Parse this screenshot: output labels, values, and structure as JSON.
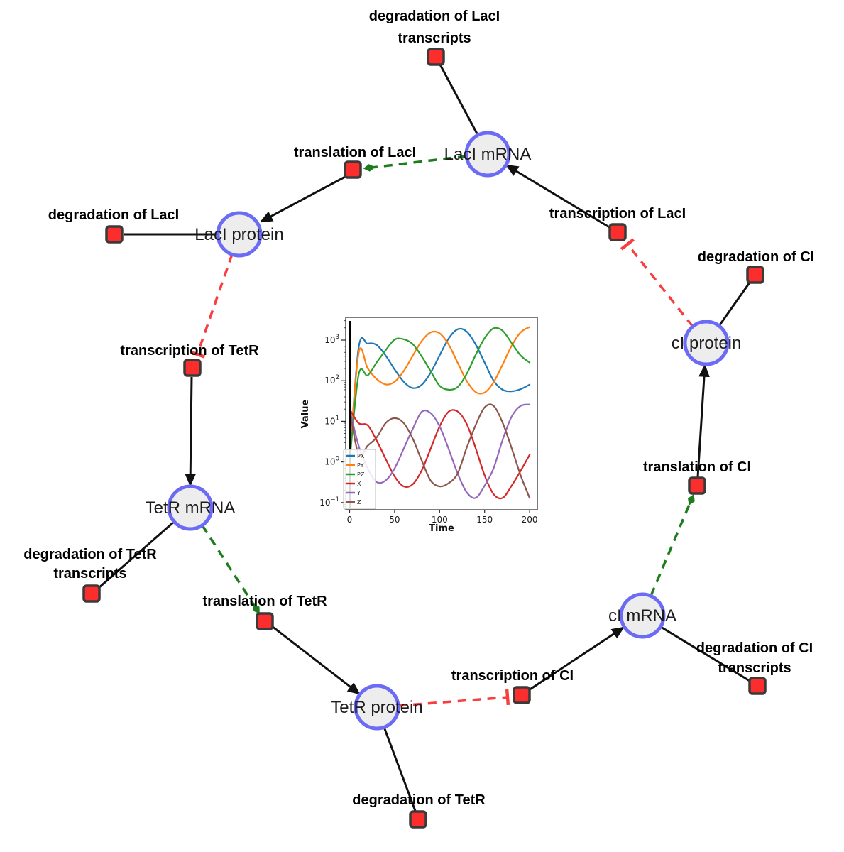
{
  "colors": {
    "node_border": "#6b6bf5",
    "node_fill": "#ededed",
    "reaction_fill": "#fb2d2d",
    "reaction_border": "#3a3a3a",
    "edge": "#111111",
    "activation_green": "#1d7d1d",
    "inhibition_red": "#f83e3e"
  },
  "network": {
    "species": {
      "laci_mrna": "LacI mRNA",
      "laci_protein": "LacI protein",
      "tetr_mrna": "TetR mRNA",
      "tetr_protein": "TetR protein",
      "ci_mrna": "cI mRNA",
      "ci_protein": "cI protein"
    },
    "reactions": {
      "deg_laci_tr_l1": "degradation of LacI",
      "deg_laci_tr_l2": "transcripts",
      "transl_laci": "translation of LacI",
      "deg_laci": "degradation of LacI",
      "transcr_laci": "transcription of LacI",
      "deg_ci": "degradation of CI",
      "transcr_tetr": "transcription of TetR",
      "deg_tetr_tr_l1": "degradation of TetR",
      "deg_tetr_tr_l2": "transcripts",
      "transl_tetr": "translation of TetR",
      "deg_tetr": "degradation of TetR",
      "transcr_ci": "transcription of CI",
      "deg_ci_tr_l1": "degradation of CI",
      "deg_ci_tr_l2": "transcripts",
      "transl_ci": "translation of CI"
    },
    "edges": [
      {
        "source": "LacI mRNA",
        "target": "degradation of LacI transcripts",
        "type": "consumption"
      },
      {
        "source": "transcription of LacI",
        "target": "LacI mRNA",
        "type": "production"
      },
      {
        "source": "LacI mRNA",
        "target": "translation of LacI",
        "type": "modifier"
      },
      {
        "source": "translation of LacI",
        "target": "LacI protein",
        "type": "production"
      },
      {
        "source": "LacI protein",
        "target": "degradation of LacI",
        "type": "consumption"
      },
      {
        "source": "LacI protein",
        "target": "transcription of TetR",
        "type": "inhibition"
      },
      {
        "source": "transcription of TetR",
        "target": "TetR mRNA",
        "type": "production"
      },
      {
        "source": "TetR mRNA",
        "target": "degradation of TetR transcripts",
        "type": "consumption"
      },
      {
        "source": "TetR mRNA",
        "target": "translation of TetR",
        "type": "modifier"
      },
      {
        "source": "translation of TetR",
        "target": "TetR protein",
        "type": "production"
      },
      {
        "source": "TetR protein",
        "target": "degradation of TetR",
        "type": "consumption"
      },
      {
        "source": "TetR protein",
        "target": "transcription of CI",
        "type": "inhibition"
      },
      {
        "source": "transcription of CI",
        "target": "cI mRNA",
        "type": "production"
      },
      {
        "source": "cI mRNA",
        "target": "degradation of CI transcripts",
        "type": "consumption"
      },
      {
        "source": "cI mRNA",
        "target": "translation of CI",
        "type": "modifier"
      },
      {
        "source": "translation of CI",
        "target": "cI protein",
        "type": "production"
      },
      {
        "source": "cI protein",
        "target": "degradation of CI",
        "type": "consumption"
      },
      {
        "source": "cI protein",
        "target": "transcription of LacI",
        "type": "inhibition"
      }
    ]
  },
  "chart_data": {
    "type": "line",
    "title": "",
    "x_label": "Time",
    "y_label": "Value",
    "y_scale": "log",
    "x_range": [
      0,
      200
    ],
    "y_range_exponents": [
      -1.18,
      3.56
    ],
    "x_ticks": [
      0,
      50,
      100,
      150,
      200
    ],
    "y_tick_exponents": [
      -1,
      0,
      1,
      2,
      3
    ],
    "grid": false,
    "legend_position": "lower left",
    "t0_marker_color": "#000000",
    "x": [
      0,
      10,
      20,
      30,
      40,
      50,
      60,
      70,
      80,
      90,
      100,
      110,
      120,
      130,
      140,
      150,
      160,
      170,
      180,
      190,
      200
    ],
    "series": [
      {
        "name": "PX",
        "color": "#1f77b4",
        "values": [
          1,
          650,
          820,
          760,
          420,
          190,
          95,
          66,
          79,
          157,
          420,
          1090,
          1850,
          1630,
          790,
          280,
          100,
          60,
          55,
          62,
          80
        ]
      },
      {
        "name": "PY",
        "color": "#ff7f0e",
        "values": [
          1,
          480,
          203,
          110,
          81,
          94,
          171,
          406,
          940,
          1550,
          1470,
          780,
          278,
          100,
          53,
          51,
          92,
          250,
          720,
          1550,
          2100
        ]
      },
      {
        "name": "PZ",
        "color": "#2ca02c",
        "values": [
          1,
          140,
          135,
          280,
          560,
          1030,
          1050,
          800,
          400,
          173,
          75,
          60,
          70,
          146,
          430,
          1120,
          1950,
          1700,
          850,
          420,
          280
        ]
      },
      {
        "name": "X",
        "color": "#d62728",
        "values": [
          20,
          9,
          8,
          3.4,
          1.2,
          0.44,
          0.25,
          0.28,
          0.61,
          2.1,
          7.5,
          17.3,
          17.5,
          8.7,
          2.2,
          0.47,
          0.16,
          0.13,
          0.26,
          0.6,
          1.5
        ]
      },
      {
        "name": "Y",
        "color": "#9467bd",
        "values": [
          20,
          2.5,
          0.7,
          0.32,
          0.35,
          0.69,
          2.1,
          6.4,
          17,
          16,
          7.5,
          2.1,
          0.52,
          0.18,
          0.13,
          0.26,
          0.7,
          3.5,
          13,
          24,
          26
        ]
      },
      {
        "name": "Z",
        "color": "#8c564b",
        "values": [
          20,
          1.5,
          2.5,
          4,
          9,
          12,
          9.1,
          3.8,
          1.1,
          0.35,
          0.25,
          0.3,
          0.52,
          2.2,
          8,
          22,
          24,
          9.2,
          2.2,
          0.47,
          0.13
        ]
      }
    ]
  }
}
